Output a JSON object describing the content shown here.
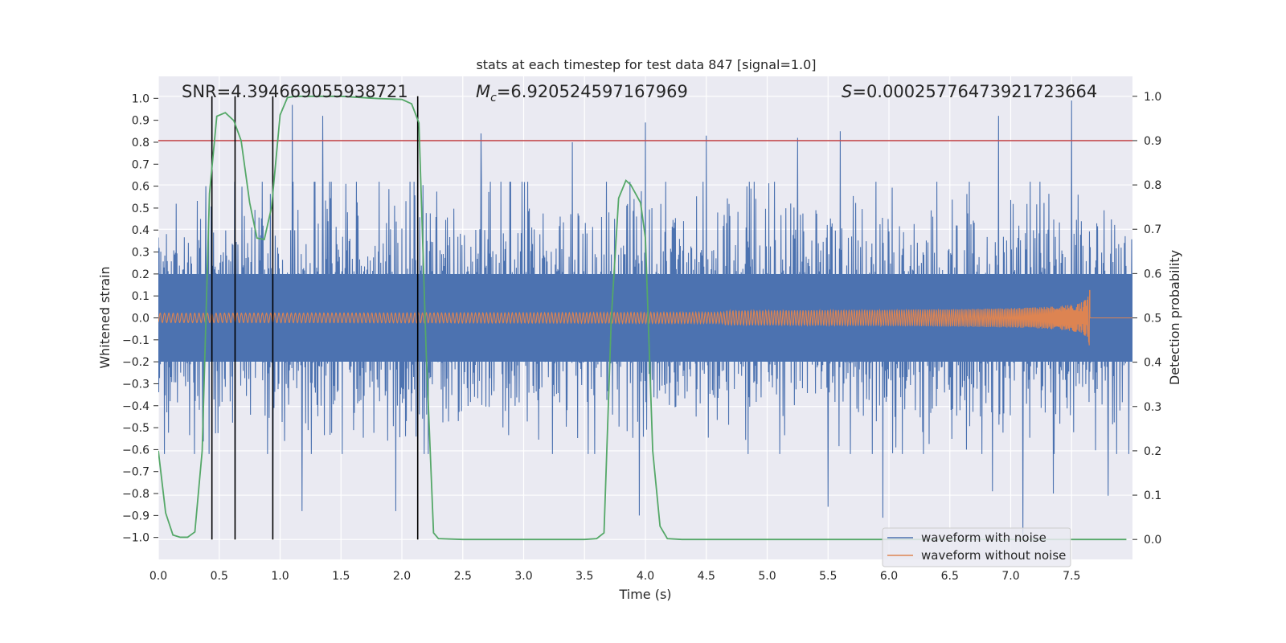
{
  "chart_data": {
    "type": "line",
    "title": "stats at each timestep for test data 847 [signal=1.0]",
    "xlabel": "Time (s)",
    "ylabel": "Whitened strain",
    "y2label": "Detection probability",
    "xlim": [
      0.0,
      8.0
    ],
    "ylim": [
      -1.1,
      1.1
    ],
    "y2lim": [
      -0.045,
      1.045
    ],
    "x_ticks": [
      0.0,
      0.5,
      1.0,
      1.5,
      2.0,
      2.5,
      3.0,
      3.5,
      4.0,
      4.5,
      5.0,
      5.5,
      6.0,
      6.5,
      7.0,
      7.5
    ],
    "y_ticks": [
      -1.0,
      -0.9,
      -0.8,
      -0.7,
      -0.6,
      -0.5,
      -0.4,
      -0.3,
      -0.2,
      -0.1,
      0.0,
      0.1,
      0.2,
      0.3,
      0.4,
      0.5,
      0.6,
      0.7,
      0.8,
      0.9,
      1.0
    ],
    "y2_ticks": [
      0.0,
      0.1,
      0.2,
      0.3,
      0.4,
      0.5,
      0.6,
      0.7,
      0.8,
      0.9,
      1.0
    ],
    "grid": true,
    "legend_placement": "lower-right",
    "annotations": {
      "snr": "SNR=4.394669055938721",
      "mc_symbol": "M",
      "mc_subscript": "c",
      "mc_value": "=6.920524597167969",
      "s_symbol": "S",
      "s_value": "=0.00025776473921723664"
    },
    "threshold_line": {
      "y": 0.9,
      "axis": "right",
      "color": "#c44e52"
    },
    "vertical_lines_x": [
      0.44,
      0.63,
      0.94,
      2.13
    ],
    "series": [
      {
        "name": "waveform with noise",
        "color": "#4c72b0",
        "x_range": [
          0.0,
          8.0
        ],
        "amplitude": 0.42,
        "peaks": [
          [
            0.39,
            0.6
          ],
          [
            1.1,
            0.97
          ],
          [
            1.35,
            0.92
          ],
          [
            2.65,
            0.84
          ],
          [
            3.4,
            0.8
          ],
          [
            4.0,
            0.89
          ],
          [
            4.5,
            0.83
          ],
          [
            5.25,
            0.82
          ],
          [
            5.6,
            0.85
          ],
          [
            6.9,
            0.92
          ],
          [
            7.5,
            0.99
          ],
          [
            7.1,
            -1.0
          ],
          [
            0.63,
            -0.91
          ],
          [
            0.94,
            -0.83
          ],
          [
            1.18,
            -0.88
          ],
          [
            1.95,
            -0.88
          ],
          [
            3.95,
            -0.9
          ],
          [
            5.95,
            -0.91
          ],
          [
            5.5,
            -0.86
          ],
          [
            6.85,
            -0.79
          ],
          [
            7.35,
            -0.8
          ],
          [
            7.8,
            -0.81
          ]
        ]
      },
      {
        "name": "waveform without noise",
        "color": "#dd8452",
        "x_range": [
          0.0,
          7.65
        ],
        "peak_amplitude": 0.13
      },
      {
        "name": "detection probability",
        "axis": "right",
        "color": "#55a868",
        "x": [
          0.0,
          0.06,
          0.12,
          0.18,
          0.24,
          0.3,
          0.36,
          0.42,
          0.48,
          0.55,
          0.62,
          0.68,
          0.75,
          0.81,
          0.87,
          0.93,
          1.0,
          1.06,
          1.12,
          1.5,
          1.8,
          2.0,
          2.08,
          2.14,
          2.2,
          2.26,
          2.3,
          2.5,
          3.0,
          3.5,
          3.6,
          3.66,
          3.72,
          3.78,
          3.84,
          3.88,
          3.96,
          4.0,
          4.06,
          4.12,
          4.18,
          4.3,
          5.0,
          6.0,
          7.0,
          7.95
        ],
        "y": [
          0.2,
          0.06,
          0.01,
          0.005,
          0.005,
          0.017,
          0.2,
          0.78,
          0.955,
          0.963,
          0.945,
          0.9,
          0.76,
          0.68,
          0.677,
          0.75,
          0.958,
          0.997,
          1.0,
          1.0,
          0.995,
          0.993,
          0.983,
          0.94,
          0.42,
          0.015,
          0.002,
          0.0,
          0.0,
          0.0,
          0.002,
          0.015,
          0.5,
          0.77,
          0.81,
          0.8,
          0.76,
          0.68,
          0.2,
          0.03,
          0.002,
          0.0,
          0.0,
          0.0,
          0.0,
          0.0
        ]
      }
    ]
  }
}
